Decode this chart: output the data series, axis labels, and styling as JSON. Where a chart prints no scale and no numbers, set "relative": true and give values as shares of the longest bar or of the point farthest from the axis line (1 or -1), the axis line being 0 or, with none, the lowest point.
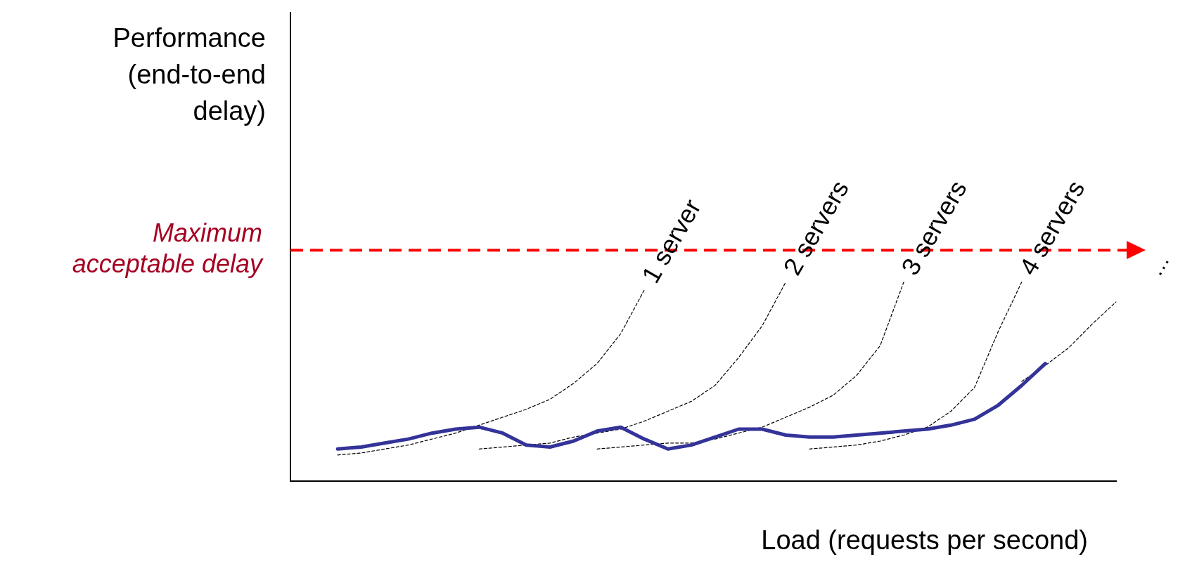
{
  "chart_data": {
    "type": "line",
    "relative": true,
    "xlabel": "Load (requests per second)",
    "grid": false,
    "legend": false,
    "marker": "none",
    "categories": [
      null,
      null,
      null,
      null,
      null,
      null,
      null,
      null,
      null,
      null,
      null,
      null,
      null,
      null,
      null,
      null,
      null,
      null,
      null,
      null,
      null,
      null,
      null,
      null,
      null,
      null,
      null,
      null,
      null,
      null,
      null,
      null,
      null,
      null,
      null,
      null
    ],
    "annotations": [
      "Performance (end-to-end delay)",
      "…"
    ],
    "ref_lines": [
      {
        "axis": "y",
        "value": 1.16,
        "label": "Maximum acceptable delay",
        "color": "#ff0000",
        "line_style": "dashed"
      }
    ],
    "series": [
      {
        "color": "#333399",
        "line_style": "solid",
        "values": [
          null,
          null,
          0.16,
          0.17,
          0.19,
          0.21,
          0.24,
          0.26,
          0.27,
          0.24,
          0.18,
          0.17,
          0.2,
          0.25,
          0.27,
          0.21,
          0.16,
          0.18,
          0.22,
          0.26,
          0.26,
          0.23,
          0.22,
          0.22,
          0.23,
          0.24,
          0.25,
          0.26,
          0.28,
          0.31,
          0.38,
          0.48,
          0.59,
          null,
          null,
          null
        ]
      },
      {
        "name": "1 server",
        "color": "#000000",
        "line_style": "dotted",
        "values": [
          null,
          null,
          0.13,
          0.14,
          0.16,
          0.18,
          0.21,
          0.24,
          0.28,
          0.32,
          0.36,
          0.41,
          0.49,
          0.59,
          0.74,
          0.96,
          null,
          null,
          null,
          null,
          null,
          null,
          null,
          null,
          null,
          null,
          null,
          null,
          null,
          null,
          null,
          null,
          null,
          null,
          null,
          null
        ]
      },
      {
        "name": "2 servers",
        "color": "#000000",
        "line_style": "dotted",
        "values": [
          null,
          null,
          null,
          null,
          null,
          null,
          null,
          null,
          0.16,
          0.17,
          0.18,
          0.19,
          0.22,
          0.24,
          0.26,
          0.3,
          0.35,
          0.4,
          0.48,
          0.62,
          0.78,
          1.0,
          null,
          null,
          null,
          null,
          null,
          null,
          null,
          null,
          null,
          null,
          null,
          null,
          null,
          null
        ]
      },
      {
        "name": "3 servers",
        "color": "#000000",
        "line_style": "dotted",
        "values": [
          null,
          null,
          null,
          null,
          null,
          null,
          null,
          null,
          null,
          null,
          null,
          null,
          null,
          0.16,
          0.17,
          0.18,
          0.19,
          0.19,
          0.21,
          0.24,
          0.27,
          0.32,
          0.37,
          0.43,
          0.53,
          0.68,
          1.0,
          null,
          null,
          null,
          null,
          null,
          null,
          null,
          null,
          null
        ]
      },
      {
        "name": "4 servers",
        "color": "#000000",
        "line_style": "dotted",
        "values": [
          null,
          null,
          null,
          null,
          null,
          null,
          null,
          null,
          null,
          null,
          null,
          null,
          null,
          null,
          null,
          null,
          null,
          null,
          null,
          null,
          null,
          null,
          0.16,
          0.17,
          0.18,
          0.2,
          0.23,
          0.27,
          0.35,
          0.47,
          0.75,
          1.0,
          null,
          null,
          null,
          null
        ]
      },
      {
        "color": "#000000",
        "line_style": "dotted",
        "values": [
          null,
          null,
          null,
          null,
          null,
          null,
          null,
          null,
          null,
          null,
          null,
          null,
          null,
          null,
          null,
          null,
          null,
          null,
          null,
          null,
          null,
          null,
          null,
          null,
          null,
          null,
          null,
          null,
          null,
          null,
          null,
          0.5,
          0.58,
          0.67,
          0.79,
          0.9
        ]
      }
    ]
  }
}
